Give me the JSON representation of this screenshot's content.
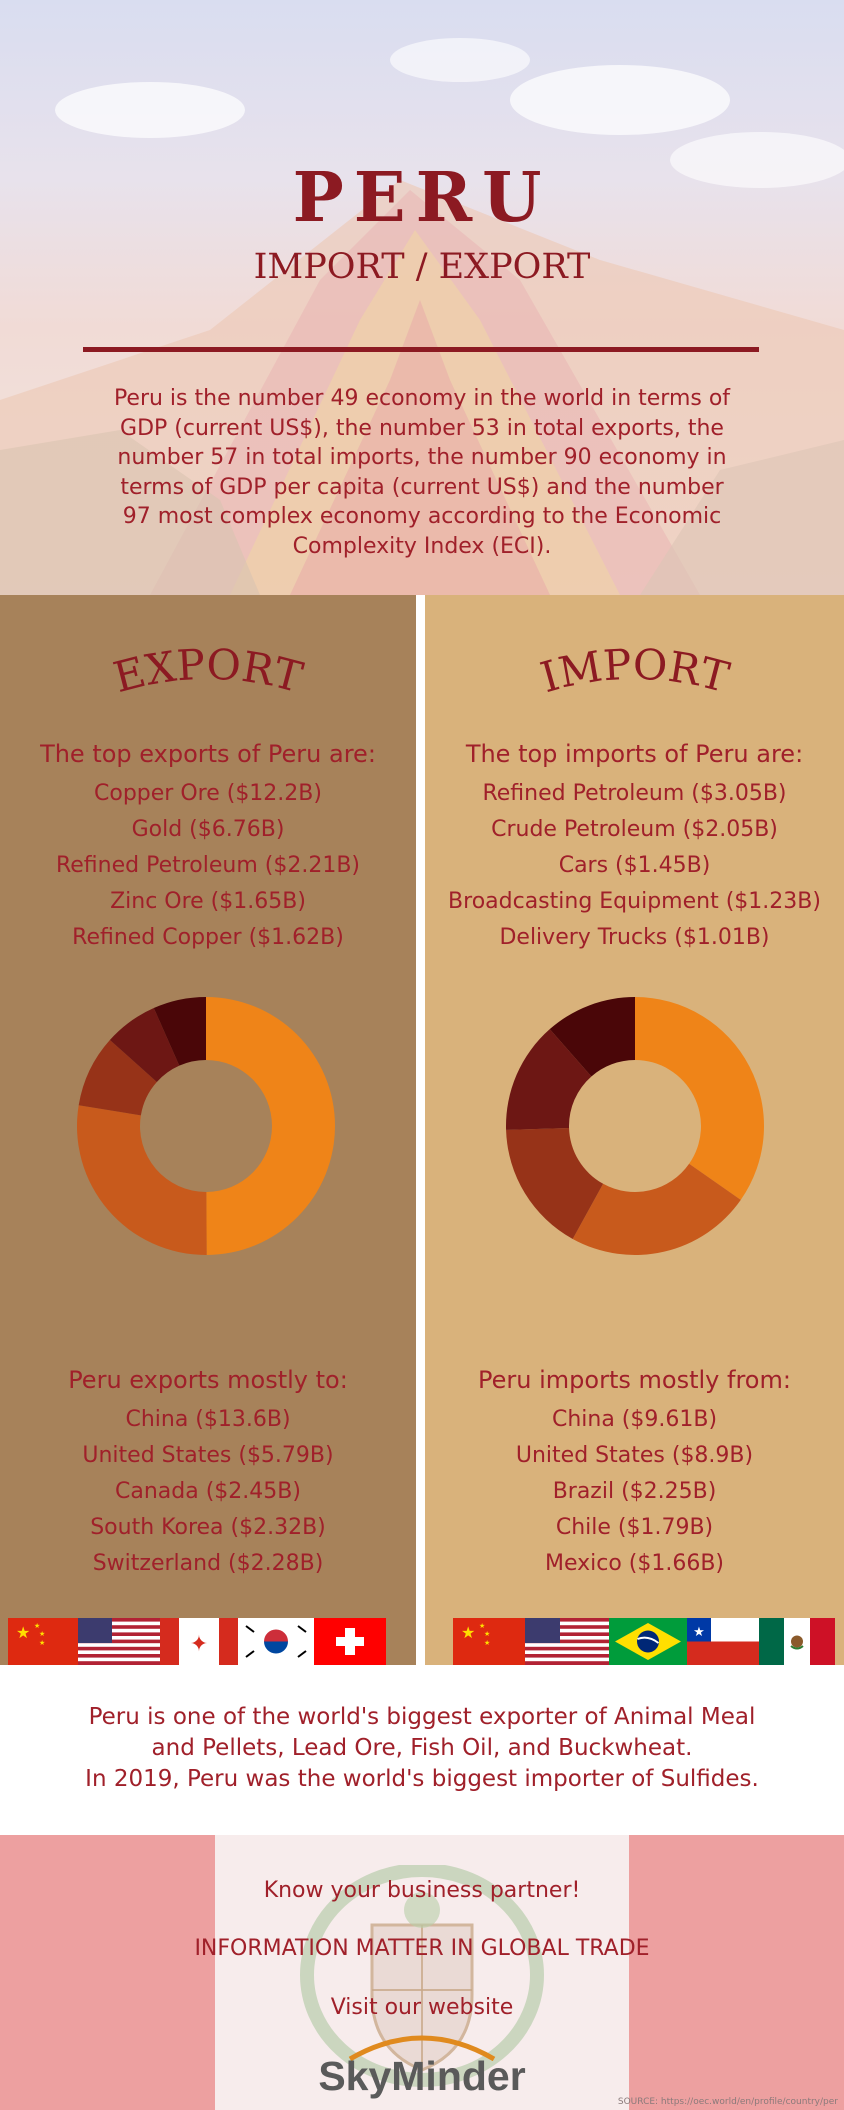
{
  "header": {
    "title": "PERU",
    "subtitle": "IMPORT / EXPORT",
    "description": "Peru is the number 49 economy in the world in terms of GDP (current US$), the number 53 in total exports, the number 57 in total imports, the number 90 economy in terms of GDP per capita (current US$) and the number 97 most complex economy according to the Economic Complexity Index (ECI)."
  },
  "export": {
    "title": "EXPORT",
    "top_heading": "The top exports of Peru are:",
    "top_items": [
      "Copper Ore ($12.2B)",
      "Gold ($6.76B)",
      "Refined Petroleum ($2.21B)",
      "Zinc Ore ($1.65B)",
      "Refined Copper ($1.62B)"
    ],
    "dest_heading": "Peru exports mostly to:",
    "dest_items": [
      "China ($13.6B)",
      "United States ($5.79B)",
      "Canada ($2.45B)",
      "South Korea ($2.32B)",
      "Switzerland ($2.28B)"
    ],
    "flags": [
      "china-flag",
      "united-states-flag",
      "canada-flag",
      "south-korea-flag",
      "switzerland-flag"
    ]
  },
  "import": {
    "title": "IMPORT",
    "top_heading": "The top imports of Peru are:",
    "top_items": [
      "Refined Petroleum ($3.05B)",
      "Crude Petroleum ($2.05B)",
      "Cars ($1.45B)",
      "Broadcasting Equipment ($1.23B)",
      "Delivery Trucks ($1.01B)"
    ],
    "dest_heading": "Peru imports mostly from:",
    "dest_items": [
      "China ($9.61B)",
      "United States ($8.9B)",
      "Brazil ($2.25B)",
      "Chile ($1.79B)",
      "Mexico ($1.66B)"
    ],
    "flags": [
      "china-flag",
      "united-states-flag",
      "brazil-flag",
      "chile-flag",
      "mexico-flag"
    ]
  },
  "chart_data": [
    {
      "type": "pie",
      "categories": [
        "Copper Ore",
        "Gold",
        "Refined Petroleum",
        "Zinc Ore",
        "Refined Copper"
      ],
      "values": [
        12.2,
        6.76,
        2.21,
        1.65,
        1.62
      ],
      "colors": [
        "#ef8418",
        "#c85a1c",
        "#973318",
        "#6d1714",
        "#4a0608"
      ]
    },
    {
      "type": "pie",
      "categories": [
        "Refined Petroleum",
        "Crude Petroleum",
        "Cars",
        "Broadcasting Equipment",
        "Delivery Trucks"
      ],
      "values": [
        3.05,
        2.05,
        1.45,
        1.23,
        1.01
      ],
      "colors": [
        "#ef8418",
        "#c85a1c",
        "#973318",
        "#6d1714",
        "#4a0608"
      ]
    }
  ],
  "summary": {
    "line1": "Peru is one of the world's biggest exporter of Animal Meal",
    "line2": "and Pellets, Lead Ore, Fish Oil, and Buckwheat.",
    "line3": "In 2019, Peru was the world's biggest importer of Sulfides."
  },
  "footer": {
    "line1": "Know your business partner!",
    "line2": "INFORMATION MATTER IN GLOBAL TRADE",
    "line3": "Visit our website",
    "brand": "SkyMinder",
    "source": "SOURCE: https://oec.world/en/profile/country/per"
  }
}
